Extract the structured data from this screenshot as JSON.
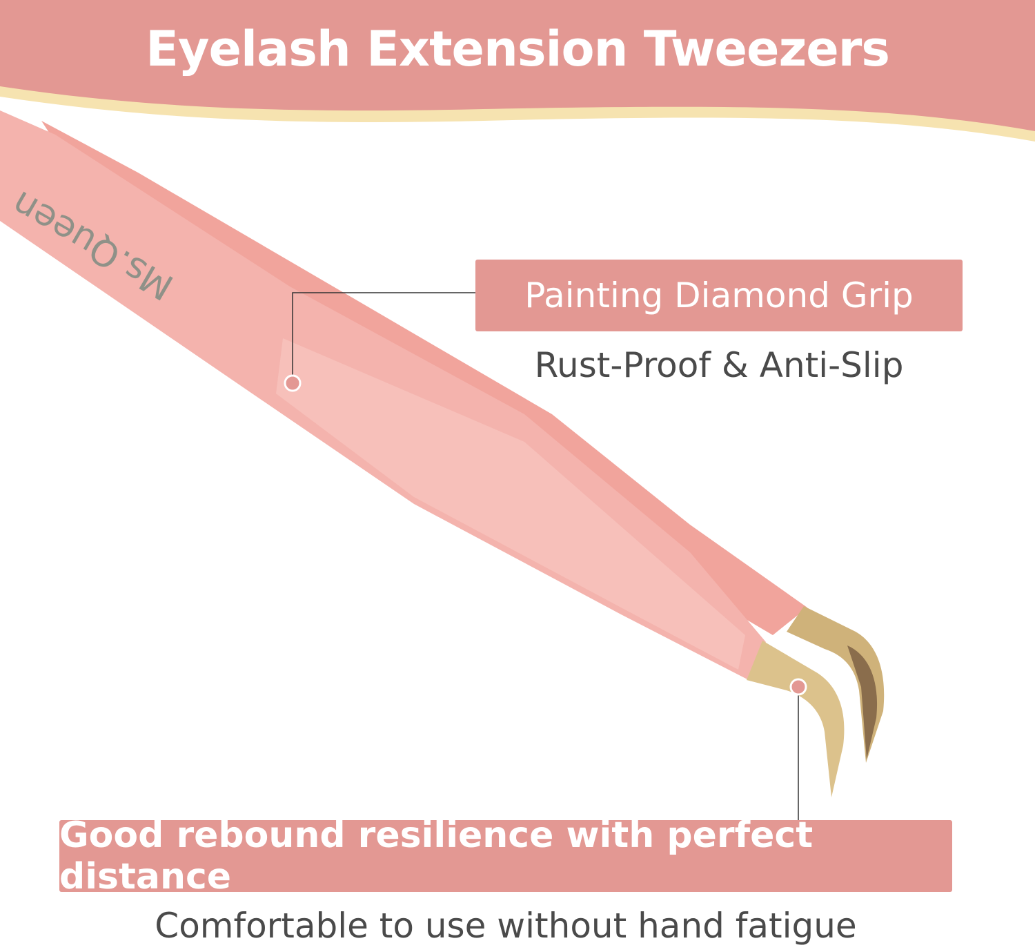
{
  "header": {
    "title": "Eyelash Extension Tweezers"
  },
  "product": {
    "logo_text": "Ms.Queen"
  },
  "features": [
    {
      "label": "Painting Diamond Grip",
      "description": "Rust-Proof & Anti-Slip"
    },
    {
      "label": "Good rebound resilience with perfect distance",
      "description": "Comfortable to use without hand fatigue"
    }
  ],
  "colors": {
    "accent": "#e39893",
    "wave": "#f6e3b0",
    "tweezer": "#f4b3ad",
    "gold": "#d9c08a"
  }
}
